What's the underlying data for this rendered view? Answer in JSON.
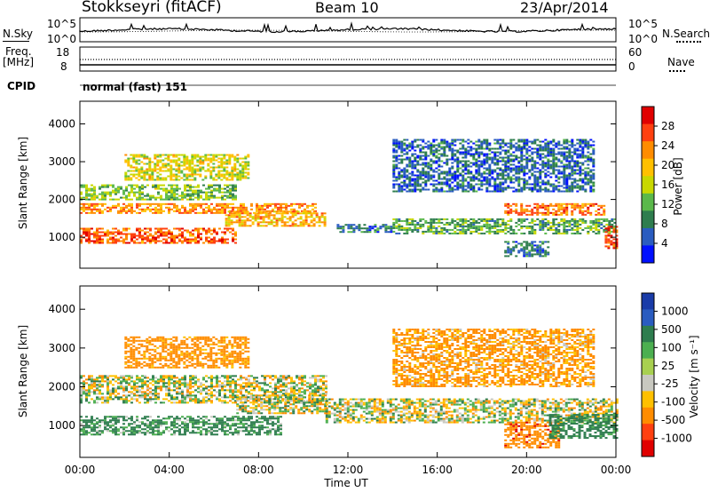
{
  "header": {
    "station": "Stokkseyri (fitACF)",
    "beam": "Beam 10",
    "date": "23/Apr/2014"
  },
  "top_panels": {
    "nsky_label": "N.Sky",
    "nsearch_label": "N.Search",
    "freq_label": "Freq.",
    "freq_unit": "[MHz]",
    "nave_label": "Nave",
    "cpid_label": "CPID",
    "cpid_text": "normal (fast) 151",
    "noise_left_ticks": [
      "10^5",
      "10^0"
    ],
    "noise_right_ticks": [
      "10^5",
      "10^0"
    ],
    "freq_left_ticks": [
      "18",
      "8"
    ],
    "nave_right_ticks": [
      "60",
      "0"
    ]
  },
  "colorbars": {
    "power": {
      "label": "Power [dB]",
      "ticks": [
        "28",
        "24",
        "20",
        "16",
        "12",
        "8",
        "4"
      ],
      "colors": [
        "#e00000",
        "#ff4010",
        "#ff8c00",
        "#ffc000",
        "#c8d800",
        "#5ab84a",
        "#2e7d4e",
        "#2a5cc0",
        "#0010ff"
      ]
    },
    "velocity": {
      "label": "Velocity [m s⁻¹]",
      "ticks": [
        "1000",
        "500",
        "100",
        "25",
        "-25",
        "-100",
        "-500",
        "-1000"
      ],
      "colors": [
        "#1a3ca8",
        "#2a5cc0",
        "#2e7d4e",
        "#4caf50",
        "#a8d050",
        "#c8c8c0",
        "#ffc000",
        "#ff8c00",
        "#ff4010",
        "#e00000"
      ]
    }
  },
  "x_axis": {
    "label": "Time UT",
    "ticks": [
      "00:00",
      "04:00",
      "08:00",
      "12:00",
      "16:00",
      "20:00",
      "00:00"
    ]
  },
  "chart_data": [
    {
      "type": "heatmap",
      "title": "",
      "xlabel": "",
      "ylabel": "Slant Range [km]",
      "x_range_hours": [
        0,
        24
      ],
      "ylim": [
        180,
        4600
      ],
      "yticks": [
        1000,
        2000,
        3000,
        4000
      ],
      "color_label": "Power [dB]",
      "color_range": [
        0,
        30
      ],
      "echo_regions": [
        {
          "t0": 0.0,
          "t1": 7.0,
          "r0": 850,
          "r1": 1250,
          "value": 25
        },
        {
          "t0": 0.0,
          "t1": 10.5,
          "r0": 1650,
          "r1": 1900,
          "value": 22
        },
        {
          "t0": 0.0,
          "t1": 7.0,
          "r0": 2000,
          "r1": 2400,
          "value": 12
        },
        {
          "t0": 2.0,
          "t1": 7.5,
          "r0": 2500,
          "r1": 3200,
          "value": 16
        },
        {
          "t0": 6.5,
          "t1": 11.0,
          "r0": 1300,
          "r1": 1700,
          "value": 20
        },
        {
          "t0": 11.5,
          "t1": 14.0,
          "r0": 1150,
          "r1": 1350,
          "value": 6
        },
        {
          "t0": 14.0,
          "t1": 24.0,
          "r0": 1100,
          "r1": 1500,
          "value": 10
        },
        {
          "t0": 19.0,
          "t1": 23.5,
          "r0": 1600,
          "r1": 1900,
          "value": 24
        },
        {
          "t0": 14.0,
          "t1": 23.0,
          "r0": 2200,
          "r1": 3600,
          "value": 5
        },
        {
          "t0": 19.0,
          "t1": 21.0,
          "r0": 500,
          "r1": 900,
          "value": 6
        },
        {
          "t0": 23.5,
          "t1": 24.0,
          "r0": 700,
          "r1": 1300,
          "value": 26
        }
      ]
    },
    {
      "type": "heatmap",
      "title": "",
      "xlabel": "Time UT",
      "ylabel": "Slant Range [km]",
      "x_range_hours": [
        0,
        24
      ],
      "ylim": [
        180,
        4600
      ],
      "yticks": [
        1000,
        2000,
        3000,
        4000
      ],
      "color_label": "Velocity [m s⁻¹]",
      "color_range": [
        -1000,
        1000
      ],
      "echo_regions": [
        {
          "t0": 0.0,
          "t1": 9.0,
          "r0": 750,
          "r1": 1250,
          "value": 150
        },
        {
          "t0": 0.0,
          "t1": 11.0,
          "r0": 1600,
          "r1": 2300,
          "value": 0
        },
        {
          "t0": 2.0,
          "t1": 7.5,
          "r0": 2500,
          "r1": 3300,
          "value": -200
        },
        {
          "t0": 7.0,
          "t1": 11.0,
          "r0": 1300,
          "r1": 1800,
          "value": 0
        },
        {
          "t0": 11.0,
          "t1": 24.0,
          "r0": 1100,
          "r1": 1700,
          "value": 0
        },
        {
          "t0": 19.0,
          "t1": 21.5,
          "r0": 450,
          "r1": 1100,
          "value": -400
        },
        {
          "t0": 14.0,
          "t1": 23.0,
          "r0": 2000,
          "r1": 3500,
          "value": -150
        },
        {
          "t0": 21.0,
          "t1": 24.0,
          "r0": 700,
          "r1": 1300,
          "value": 200
        }
      ]
    }
  ]
}
